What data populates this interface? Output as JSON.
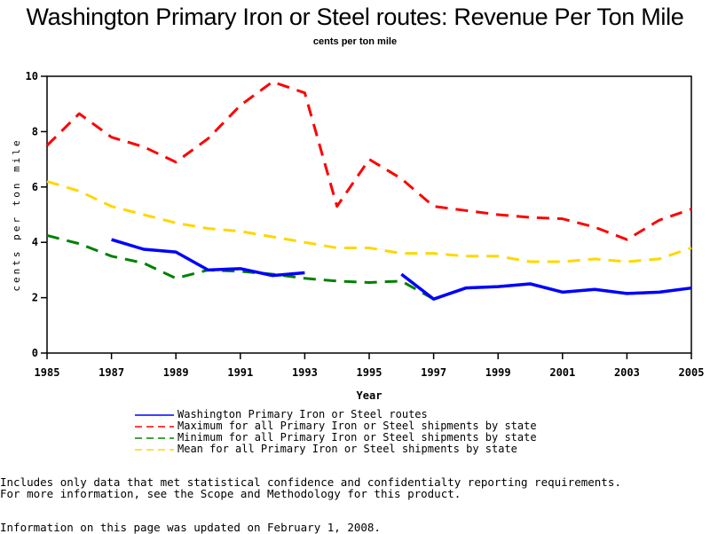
{
  "header": {
    "title": "Washington Primary Iron or Steel routes: Revenue Per Ton Mile",
    "subtitle": "cents per ton mile"
  },
  "chart_data": {
    "type": "line",
    "title": "Washington Primary Iron or Steel routes: Revenue Per Ton Mile",
    "subtitle": "cents per ton mile",
    "xlabel": "Year",
    "ylabel": "cents per ton mile",
    "xlim": [
      1985,
      2005
    ],
    "ylim": [
      0,
      10
    ],
    "x_ticks": [
      "1985",
      "1987",
      "1989",
      "1991",
      "1993",
      "1995",
      "1997",
      "1999",
      "2001",
      "2003",
      "2005"
    ],
    "y_ticks": [
      "0",
      "2",
      "4",
      "6",
      "8",
      "10"
    ],
    "grid": false,
    "legend_position": "bottom",
    "x": [
      1985,
      1986,
      1987,
      1988,
      1989,
      1990,
      1991,
      1992,
      1993,
      1994,
      1995,
      1996,
      1997,
      1998,
      1999,
      2000,
      2001,
      2002,
      2003,
      2004,
      2005
    ],
    "series": [
      {
        "name": "Washington Primary Iron or Steel routes",
        "color": "#0000ff",
        "style": "solid",
        "values": [
          null,
          null,
          4.1,
          3.75,
          3.65,
          3.0,
          3.05,
          2.8,
          2.9,
          null,
          null,
          2.85,
          1.95,
          2.35,
          2.4,
          2.5,
          2.2,
          2.3,
          2.15,
          2.2,
          2.35
        ]
      },
      {
        "name": "Maximum for all Primary Iron or Steel shipments by state",
        "color": "#ff0000",
        "style": "dashed",
        "values": [
          7.5,
          8.65,
          7.8,
          7.45,
          6.9,
          7.75,
          8.95,
          9.8,
          9.4,
          5.3,
          7.0,
          6.3,
          5.3,
          5.15,
          5.0,
          4.9,
          4.85,
          4.55,
          4.1,
          4.8,
          5.2
        ]
      },
      {
        "name": "Minimum for all Primary Iron or Steel shipments by state",
        "color": "#008000",
        "style": "dashed",
        "values": [
          4.25,
          3.95,
          3.5,
          3.25,
          2.7,
          3.0,
          2.95,
          2.85,
          2.7,
          2.6,
          2.55,
          2.6,
          1.95,
          2.35,
          2.4,
          2.5,
          2.2,
          2.3,
          2.15,
          2.2,
          2.35
        ]
      },
      {
        "name": "Mean for all Primary Iron or Steel shipments by state",
        "color": "#ffd700",
        "style": "dashed",
        "values": [
          6.2,
          5.85,
          5.3,
          5.0,
          4.7,
          4.5,
          4.4,
          4.2,
          4.0,
          3.8,
          3.8,
          3.6,
          3.6,
          3.5,
          3.5,
          3.3,
          3.3,
          3.4,
          3.3,
          3.4,
          3.8
        ]
      }
    ]
  },
  "footnotes": {
    "line1": "Includes only data that met statistical confidence and confidentialty reporting requirements.",
    "line2": "For more information, see the Scope and Methodology for this product.",
    "updated": "Information on this page was updated on February 1, 2008."
  }
}
